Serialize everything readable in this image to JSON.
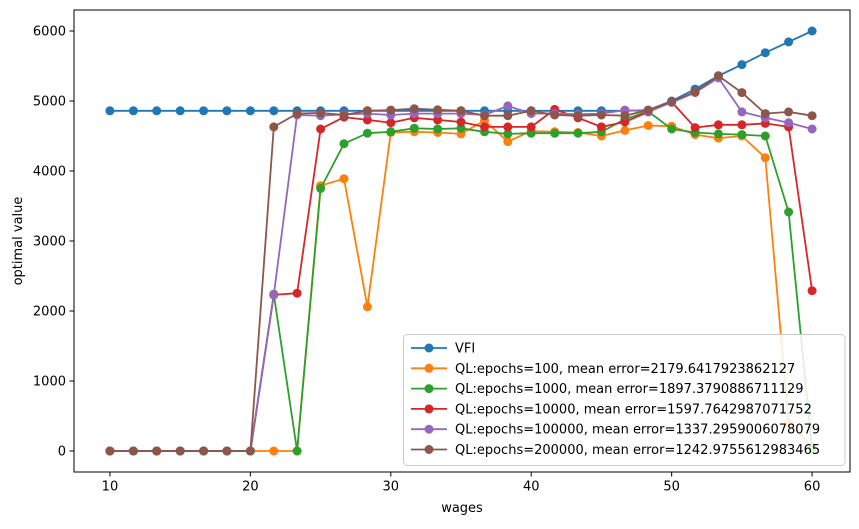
{
  "chart_data": {
    "type": "line",
    "title": "",
    "xlabel": "wages",
    "ylabel": "optimal value",
    "xlim": [
      7.44,
      62.7
    ],
    "ylim": [
      -300,
      6300
    ],
    "x_ticks": [
      10,
      20,
      30,
      40,
      50,
      60
    ],
    "y_ticks": [
      0,
      1000,
      2000,
      3000,
      4000,
      5000,
      6000
    ],
    "grid": false,
    "legend_position": "lower right",
    "marker": "o",
    "x": [
      10,
      11.67,
      13.33,
      15,
      16.67,
      18.33,
      20,
      21.67,
      23.33,
      25,
      26.67,
      28.33,
      30,
      31.67,
      33.33,
      35,
      36.67,
      38.33,
      40,
      41.67,
      43.33,
      45,
      46.67,
      48.33,
      50,
      51.67,
      53.33,
      55,
      56.67,
      58.33,
      60
    ],
    "series": [
      {
        "name": "VFI",
        "color": "#1f77b4",
        "values": [
          4860,
          4860,
          4860,
          4860,
          4860,
          4860,
          4860,
          4860,
          4860,
          4860,
          4860,
          4860,
          4860,
          4860,
          4860,
          4860,
          4860,
          4860,
          4860,
          4860,
          4860,
          4860,
          4860,
          4870,
          5000,
          5170,
          5360,
          5520,
          5690,
          5845,
          6000
        ]
      },
      {
        "name": "QL:epochs=100, mean error=2179.6417923862127",
        "color": "#ff7f0e",
        "values": [
          0,
          0,
          0,
          0,
          0,
          0,
          0,
          0,
          0,
          3790,
          3890,
          2060,
          4550,
          4560,
          4550,
          4530,
          4720,
          4420,
          4570,
          4560,
          4550,
          4500,
          4580,
          4650,
          4640,
          4520,
          4470,
          4500,
          4190,
          400,
          60
        ]
      },
      {
        "name": "QL:epochs=1000, mean error=1897.3790886711129",
        "color": "#2ca02c",
        "values": [
          0,
          0,
          0,
          0,
          0,
          0,
          0,
          2240,
          0,
          3750,
          4390,
          4540,
          4560,
          4610,
          4600,
          4610,
          4560,
          4530,
          4540,
          4540,
          4540,
          4560,
          4740,
          4850,
          4600,
          4550,
          4530,
          4520,
          4500,
          3415,
          30
        ]
      },
      {
        "name": "QL:epochs=10000, mean error=1597.7642987071752",
        "color": "#d62728",
        "values": [
          0,
          0,
          0,
          0,
          0,
          0,
          0,
          2230,
          2255,
          4600,
          4770,
          4730,
          4690,
          4760,
          4730,
          4700,
          4630,
          4630,
          4630,
          4880,
          4760,
          4630,
          4700,
          4845,
          4985,
          4620,
          4660,
          4660,
          4680,
          4630,
          2290
        ]
      },
      {
        "name": "QL:epochs=100000, mean error=1337.2959006078079",
        "color": "#9467bd",
        "values": [
          0,
          0,
          0,
          0,
          0,
          0,
          0,
          2230,
          4800,
          4790,
          4810,
          4820,
          4800,
          4820,
          4820,
          4820,
          4800,
          4930,
          4820,
          4820,
          4810,
          4820,
          4870,
          4850,
          4980,
          5120,
          5330,
          4845,
          4760,
          4690,
          4600
        ]
      },
      {
        "name": "QL:epochs=200000, mean error=1242.9755612983465",
        "color": "#8c564b",
        "values": [
          0,
          0,
          0,
          0,
          0,
          0,
          0,
          4630,
          4820,
          4830,
          4800,
          4860,
          4870,
          4890,
          4875,
          4860,
          4790,
          4790,
          4860,
          4800,
          4790,
          4800,
          4790,
          4870,
          4990,
          5130,
          5360,
          5120,
          4820,
          4845,
          4790
        ]
      }
    ]
  }
}
